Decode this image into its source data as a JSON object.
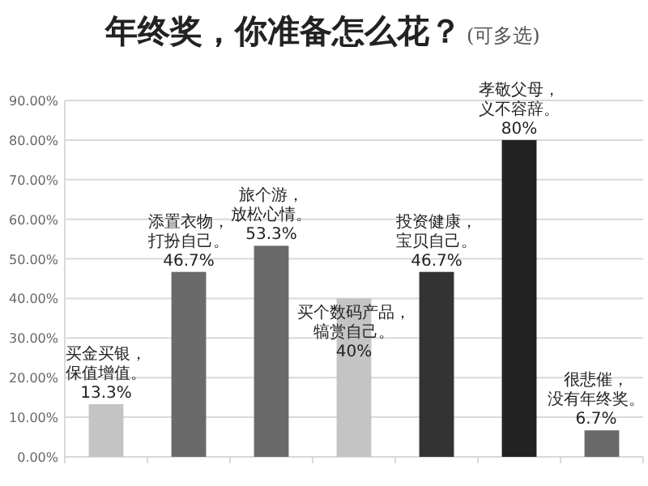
{
  "chart_data": {
    "type": "bar",
    "title": "年终奖，你准备怎么花？",
    "subtitle": "(可多选)",
    "categories": [
      "买金买银，保值增值。",
      "添置衣物，打扮自己。",
      "旅个游，放松心情。",
      "买个数码产品，犒赏自己。",
      "投资健康，宝贝自己。",
      "孝敬父母，义不容辞。",
      "很悲催，没有年终奖。"
    ],
    "values": [
      13.3,
      46.7,
      53.3,
      40,
      46.7,
      80,
      6.7
    ],
    "value_labels": [
      "13.3%",
      "46.7%",
      "53.3%",
      "40%",
      "46.7%",
      "80%",
      "6.7%"
    ],
    "colors": [
      "#c4c4c4",
      "#6a6a6a",
      "#6a6a6a",
      "#c4c4c4",
      "#333333",
      "#222222",
      "#6a6a6a"
    ],
    "ylim": [
      0,
      90
    ],
    "yticks": [
      {
        "value": 0,
        "label": "0.00%"
      },
      {
        "value": 10,
        "label": "10.00%"
      },
      {
        "value": 20,
        "label": "20.00%"
      },
      {
        "value": 30,
        "label": "30.00%"
      },
      {
        "value": 40,
        "label": "40.00%"
      },
      {
        "value": 50,
        "label": "50.00%"
      },
      {
        "value": 60,
        "label": "60.00%"
      },
      {
        "value": 70,
        "label": "70.00%"
      },
      {
        "value": 80,
        "label": "80.00%"
      },
      {
        "value": 90,
        "label": "90.00%"
      }
    ],
    "grid": "y"
  }
}
